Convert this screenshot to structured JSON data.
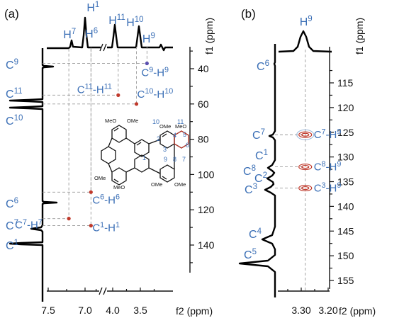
{
  "chart_data": [
    {
      "type": "2D NMR HSQC spectrum",
      "panel_label": "(a)",
      "x_axis": {
        "label": "f2 (ppm)",
        "segment_1": {
          "ticks": [
            "7.5",
            "7.0"
          ],
          "range": [
            7.7,
            6.8
          ]
        },
        "segment_2": {
          "ticks": [
            "4.0",
            "3.5"
          ],
          "range": [
            4.2,
            3.25
          ]
        },
        "axis_break": true
      },
      "y_axis": {
        "label": "f1 (ppm)",
        "ticks": [
          "40",
          "60",
          "80",
          "100",
          "120",
          "140"
        ],
        "range": [
          32,
          155
        ],
        "reversed": true
      },
      "f2_projection_labels": [
        {
          "sup": "7",
          "x_ppm": 7.2
        },
        {
          "sup": "6",
          "x_ppm": 6.96
        },
        {
          "sup": "1",
          "x_ppm": 6.92
        },
        {
          "sup": "11",
          "x_ppm": 3.92
        },
        {
          "sup": "10",
          "x_ppm": 3.6
        },
        {
          "sup": "9",
          "x_ppm": 3.36
        }
      ],
      "f1_projection_labels": [
        {
          "sup": "9",
          "y_ppm": 37
        },
        {
          "sup": "11",
          "y_ppm": 51
        },
        {
          "sup": "10",
          "y_ppm": 64
        },
        {
          "sup": "6",
          "y_ppm": 109
        },
        {
          "sup": "7",
          "y_ppm": 123
        },
        {
          "sup": "1",
          "y_ppm": 132
        }
      ],
      "cross_peaks": [
        {
          "label": "C9-H9",
          "parts": [
            "C",
            "9",
            "-H",
            "9"
          ],
          "x_ppm": 3.38,
          "y_ppm": 37
        },
        {
          "label": "C11-H11",
          "parts": [
            "C",
            "11",
            "-H",
            "11"
          ],
          "x_ppm": 3.9,
          "y_ppm": 55
        },
        {
          "label": "C10-H10",
          "parts": [
            "C",
            "10",
            "-H",
            "10"
          ],
          "x_ppm": 3.57,
          "y_ppm": 60
        },
        {
          "label": "C6-H6",
          "parts": [
            "C",
            "6",
            "-H",
            "6"
          ],
          "x_ppm": 6.92,
          "y_ppm": 110
        },
        {
          "label": "C7-H7",
          "parts": [
            "C",
            "7",
            "-H",
            "7"
          ],
          "x_ppm": 7.22,
          "y_ppm": 125
        },
        {
          "label": "C1-H1",
          "parts": [
            "C",
            "1",
            "-H",
            "1"
          ],
          "x_ppm": 6.92,
          "y_ppm": 129
        }
      ]
    },
    {
      "type": "2D NMR HSQC spectrum",
      "panel_label": "(b)",
      "x_axis": {
        "label": "f2 (ppm)",
        "ticks": [
          "3.30",
          "3.20"
        ],
        "range": [
          3.38,
          3.14
        ]
      },
      "y_axis": {
        "label": "f1 (ppm)",
        "ticks": [
          "115",
          "120",
          "125",
          "130",
          "135",
          "140",
          "145",
          "150",
          "155"
        ],
        "range": [
          107,
          157
        ],
        "reversed": true
      },
      "f2_projection_labels": [
        {
          "sup": "9",
          "x_ppm": 3.285
        }
      ],
      "f1_projection_labels": [
        {
          "sup": "6",
          "y_ppm": 111
        },
        {
          "sup": "7",
          "y_ppm": 125.5
        },
        {
          "sup": "1",
          "y_ppm": 129.6
        },
        {
          "sup": "8",
          "y_ppm": 132
        },
        {
          "sup": "2",
          "y_ppm": 134.3
        },
        {
          "sup": "3",
          "y_ppm": 136.3
        },
        {
          "sup": "4",
          "y_ppm": 145.5
        },
        {
          "sup": "5",
          "y_ppm": 150
        }
      ],
      "cross_peaks": [
        {
          "label": "C7-H9",
          "parts": [
            "C",
            "7",
            "-H",
            "9"
          ],
          "x_ppm": 3.285,
          "y_ppm": 125.5
        },
        {
          "label": "C8-H9",
          "parts": [
            "C",
            "8",
            "-H",
            "9"
          ],
          "x_ppm": 3.285,
          "y_ppm": 132
        },
        {
          "label": "C3-H9",
          "parts": [
            "C",
            "3",
            "-H",
            "9"
          ],
          "x_ppm": 3.285,
          "y_ppm": 136.3
        }
      ]
    }
  ],
  "structure": {
    "substituents": [
      "MeO",
      "OMe",
      "OMe",
      "MeO",
      "OMe",
      "MeO",
      "OMe",
      "OMe"
    ],
    "atom_numbers": [
      "10",
      "11",
      "2",
      "4",
      "5",
      "3",
      "6",
      "1",
      "9",
      "8",
      "7"
    ]
  },
  "colors": {
    "label": "#3b6fb6",
    "peak": "#c0392b",
    "peak_h9": "#5a4fb0",
    "ring": "#c0392b"
  }
}
